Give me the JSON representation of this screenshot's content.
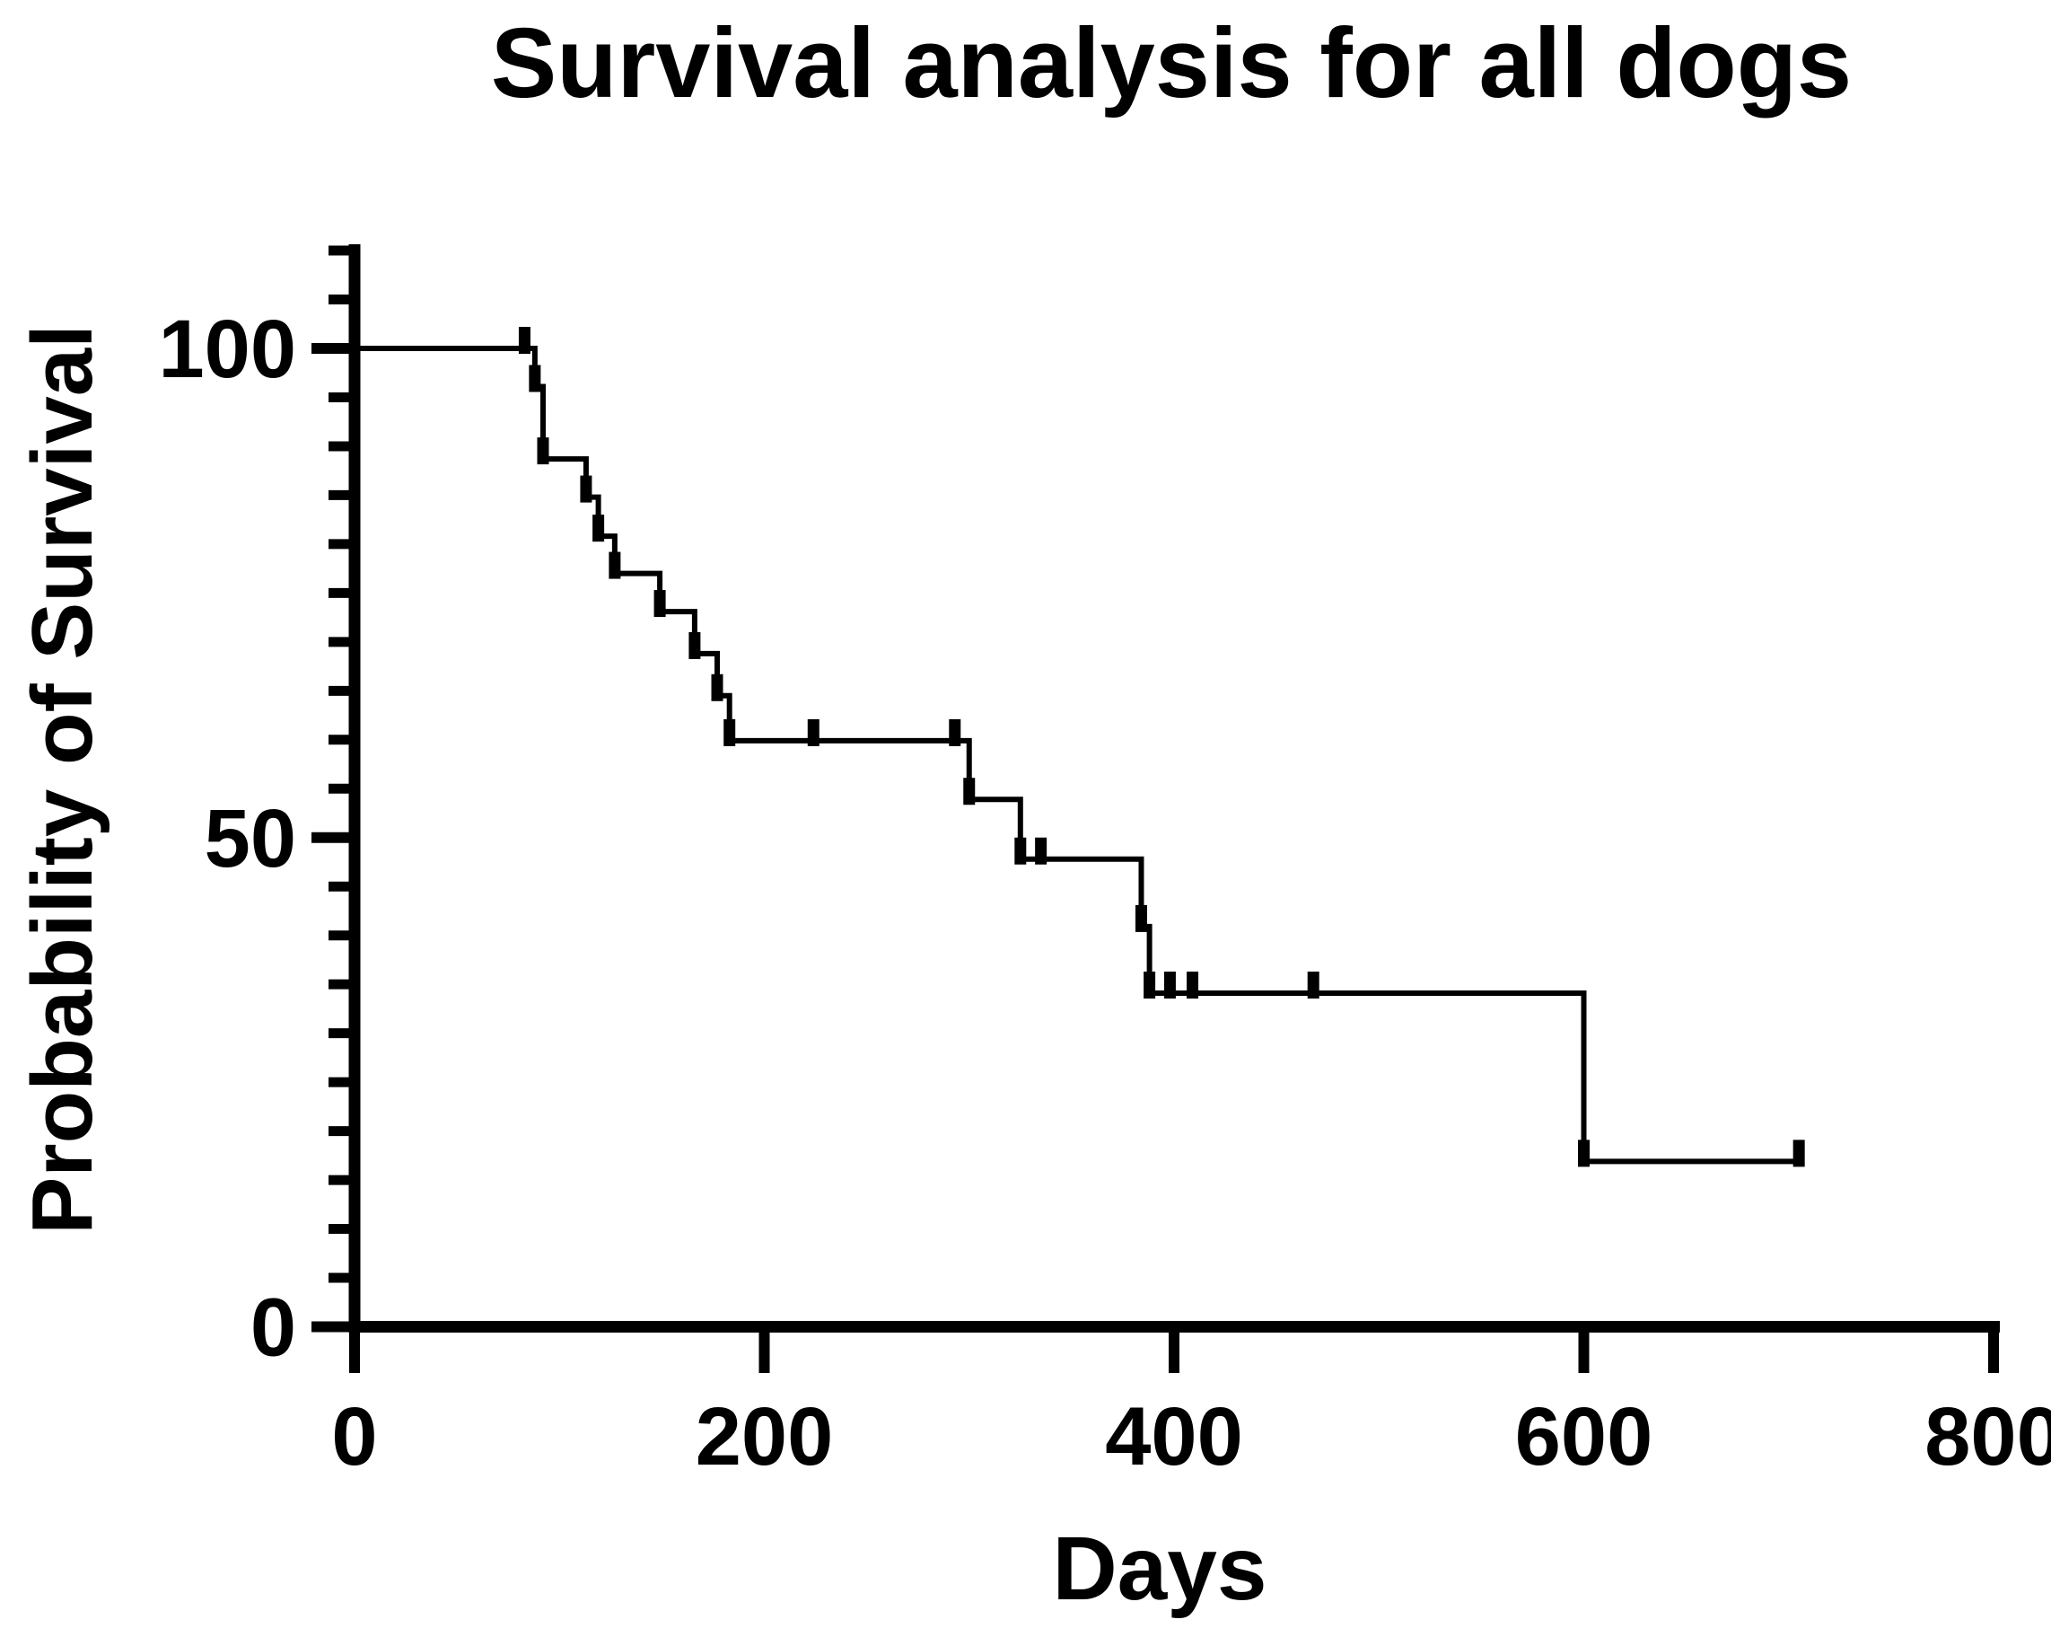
{
  "chart": {
    "title": "Survival analysis for all dogs",
    "x_axis": {
      "title": "Days",
      "tick_labels": [
        "0",
        "200",
        "400",
        "600",
        "800"
      ]
    },
    "y_axis": {
      "title": "Probability of Survival",
      "tick_labels": [
        "0",
        "50",
        "100"
      ]
    }
  },
  "colors": {
    "foreground": "#000000",
    "background": "#ffffff"
  },
  "chart_data": {
    "type": "line",
    "subtype": "kaplan-meier-survival-step",
    "title": "Survival analysis for all dogs",
    "xlabel": "Days",
    "ylabel": "Probability of Survival",
    "xlim": [
      0,
      800
    ],
    "ylim": [
      0,
      110
    ],
    "x_major_ticks": [
      0,
      200,
      400,
      600,
      800
    ],
    "y_major_ticks": [
      0,
      50,
      100
    ],
    "y_minor_tick_step": 5,
    "y_axis_top_value": 110,
    "grid": false,
    "legend": false,
    "series": [
      {
        "name": "All dogs",
        "steps_day_percent": [
          [
            0,
            100
          ],
          [
            88,
            96.1
          ],
          [
            92,
            88.7
          ],
          [
            113,
            84.8
          ],
          [
            119,
            80.8
          ],
          [
            127,
            77.0
          ],
          [
            149,
            73.1
          ],
          [
            166,
            68.8
          ],
          [
            177,
            64.5
          ],
          [
            183,
            59.9
          ],
          [
            300,
            53.9
          ],
          [
            325,
            47.8
          ],
          [
            384,
            40.9
          ],
          [
            388,
            34.1
          ],
          [
            600,
            16.9
          ]
        ],
        "curve_end_day": 705,
        "tick_marks": [
          {
            "day": 83,
            "level": 100,
            "type": "censor"
          },
          {
            "day": 88,
            "level": 96.1,
            "type": "event"
          },
          {
            "day": 92,
            "level": 88.7,
            "type": "event"
          },
          {
            "day": 113,
            "level": 84.8,
            "type": "event"
          },
          {
            "day": 119,
            "level": 80.8,
            "type": "event"
          },
          {
            "day": 127,
            "level": 77.0,
            "type": "event"
          },
          {
            "day": 149,
            "level": 73.1,
            "type": "event"
          },
          {
            "day": 166,
            "level": 68.8,
            "type": "event"
          },
          {
            "day": 177,
            "level": 64.5,
            "type": "event"
          },
          {
            "day": 183,
            "level": 59.9,
            "type": "event"
          },
          {
            "day": 224,
            "level": 59.9,
            "type": "censor"
          },
          {
            "day": 293,
            "level": 59.9,
            "type": "censor"
          },
          {
            "day": 300,
            "level": 53.9,
            "type": "event"
          },
          {
            "day": 325,
            "level": 47.8,
            "type": "event"
          },
          {
            "day": 335,
            "level": 47.8,
            "type": "censor"
          },
          {
            "day": 384,
            "level": 40.9,
            "type": "event"
          },
          {
            "day": 388,
            "level": 34.1,
            "type": "event"
          },
          {
            "day": 398,
            "level": 34.1,
            "type": "censor"
          },
          {
            "day": 409,
            "level": 34.1,
            "type": "censor"
          },
          {
            "day": 468,
            "level": 34.1,
            "type": "censor"
          },
          {
            "day": 600,
            "level": 16.9,
            "type": "event"
          },
          {
            "day": 705,
            "level": 16.9,
            "type": "censor"
          }
        ]
      }
    ]
  }
}
